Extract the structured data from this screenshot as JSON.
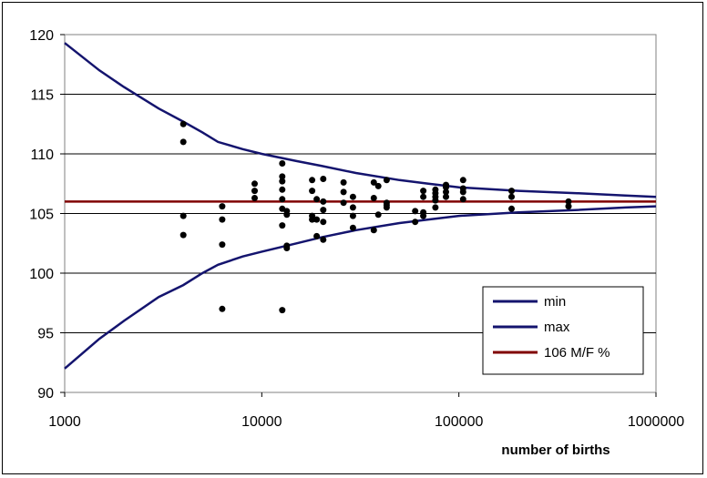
{
  "chart_data": {
    "type": "scatter",
    "xlabel": "number of births",
    "ylabel": "",
    "x_scale": "log",
    "xlim": [
      1000,
      1000000
    ],
    "ylim": [
      90,
      120
    ],
    "x_ticks": [
      {
        "value": 1000,
        "label": "1000"
      },
      {
        "value": 10000,
        "label": "10000"
      },
      {
        "value": 100000,
        "label": "100000"
      },
      {
        "value": 1000000,
        "label": "1000000"
      }
    ],
    "y_ticks": [
      {
        "value": 90,
        "label": "90"
      },
      {
        "value": 95,
        "label": "95"
      },
      {
        "value": 100,
        "label": "100"
      },
      {
        "value": 105,
        "label": "105"
      },
      {
        "value": 110,
        "label": "110"
      },
      {
        "value": 115,
        "label": "115"
      },
      {
        "value": 120,
        "label": "120"
      }
    ],
    "grid": "horizontal",
    "legend_position": "bottom-right",
    "series": [
      {
        "name": "min",
        "kind": "line",
        "color": "#14146e",
        "points": [
          [
            1000,
            92.0
          ],
          [
            1500,
            94.5
          ],
          [
            2000,
            96.0
          ],
          [
            3000,
            98.0
          ],
          [
            4000,
            99.0
          ],
          [
            5000,
            100.0
          ],
          [
            6000,
            100.7
          ],
          [
            8000,
            101.4
          ],
          [
            10000,
            101.8
          ],
          [
            15000,
            102.5
          ],
          [
            20000,
            103.0
          ],
          [
            30000,
            103.6
          ],
          [
            50000,
            104.2
          ],
          [
            70000,
            104.5
          ],
          [
            100000,
            104.8
          ],
          [
            200000,
            105.1
          ],
          [
            400000,
            105.3
          ],
          [
            700000,
            105.5
          ],
          [
            1000000,
            105.6
          ]
        ]
      },
      {
        "name": "max",
        "kind": "line",
        "color": "#14146e",
        "points": [
          [
            1000,
            119.3
          ],
          [
            1500,
            117.0
          ],
          [
            2000,
            115.6
          ],
          [
            3000,
            113.8
          ],
          [
            4000,
            112.7
          ],
          [
            5000,
            111.8
          ],
          [
            6000,
            111.0
          ],
          [
            8000,
            110.4
          ],
          [
            10000,
            110.0
          ],
          [
            15000,
            109.4
          ],
          [
            20000,
            109.0
          ],
          [
            30000,
            108.4
          ],
          [
            50000,
            107.8
          ],
          [
            70000,
            107.5
          ],
          [
            100000,
            107.2
          ],
          [
            200000,
            106.9
          ],
          [
            400000,
            106.7
          ],
          [
            700000,
            106.5
          ],
          [
            1000000,
            106.4
          ]
        ]
      },
      {
        "name": "106 M/F %",
        "kind": "line",
        "color": "#800000",
        "points": [
          [
            1000,
            106
          ],
          [
            1000000,
            106
          ]
        ]
      },
      {
        "name": "",
        "kind": "scatter",
        "color": "#000000",
        "points": [
          [
            4000,
            112.5
          ],
          [
            4000,
            111.0
          ],
          [
            4000,
            104.8
          ],
          [
            4000,
            103.2
          ],
          [
            6300,
            105.6
          ],
          [
            6300,
            104.5
          ],
          [
            6300,
            102.4
          ],
          [
            6300,
            97.0
          ],
          [
            9200,
            107.5
          ],
          [
            9200,
            106.9
          ],
          [
            9200,
            106.3
          ],
          [
            12700,
            109.2
          ],
          [
            12700,
            108.1
          ],
          [
            12700,
            107.7
          ],
          [
            12700,
            107.0
          ],
          [
            12700,
            106.2
          ],
          [
            12700,
            105.4
          ],
          [
            12700,
            104.0
          ],
          [
            12700,
            96.9
          ],
          [
            13400,
            105.2
          ],
          [
            13400,
            104.9
          ],
          [
            13400,
            102.3
          ],
          [
            13400,
            102.1
          ],
          [
            18000,
            107.8
          ],
          [
            18000,
            106.9
          ],
          [
            18000,
            104.8
          ],
          [
            18000,
            104.5
          ],
          [
            19000,
            106.2
          ],
          [
            19000,
            104.5
          ],
          [
            19000,
            103.1
          ],
          [
            20500,
            107.9
          ],
          [
            20500,
            106.0
          ],
          [
            20500,
            105.3
          ],
          [
            20500,
            104.3
          ],
          [
            20500,
            102.8
          ],
          [
            26000,
            107.6
          ],
          [
            26000,
            106.8
          ],
          [
            26000,
            105.9
          ],
          [
            29000,
            106.4
          ],
          [
            29000,
            105.5
          ],
          [
            29000,
            104.8
          ],
          [
            29000,
            103.8
          ],
          [
            37000,
            107.6
          ],
          [
            37000,
            106.3
          ],
          [
            37000,
            103.6
          ],
          [
            39000,
            107.3
          ],
          [
            39000,
            104.9
          ],
          [
            43000,
            107.8
          ],
          [
            43000,
            105.9
          ],
          [
            43000,
            105.5
          ],
          [
            43000,
            105.7
          ],
          [
            60000,
            105.2
          ],
          [
            60000,
            104.3
          ],
          [
            66000,
            106.9
          ],
          [
            66000,
            106.4
          ],
          [
            66000,
            105.1
          ],
          [
            66000,
            104.8
          ],
          [
            76000,
            107.0
          ],
          [
            76000,
            106.7
          ],
          [
            76000,
            106.4
          ],
          [
            76000,
            106.1
          ],
          [
            76000,
            105.5
          ],
          [
            86000,
            107.4
          ],
          [
            86000,
            107.2
          ],
          [
            86000,
            106.8
          ],
          [
            86000,
            106.4
          ],
          [
            105000,
            107.8
          ],
          [
            105000,
            107.1
          ],
          [
            105000,
            106.8
          ],
          [
            105000,
            106.2
          ],
          [
            185000,
            106.9
          ],
          [
            185000,
            106.4
          ],
          [
            185000,
            105.4
          ],
          [
            360000,
            106.0
          ],
          [
            360000,
            105.6
          ]
        ]
      }
    ]
  }
}
